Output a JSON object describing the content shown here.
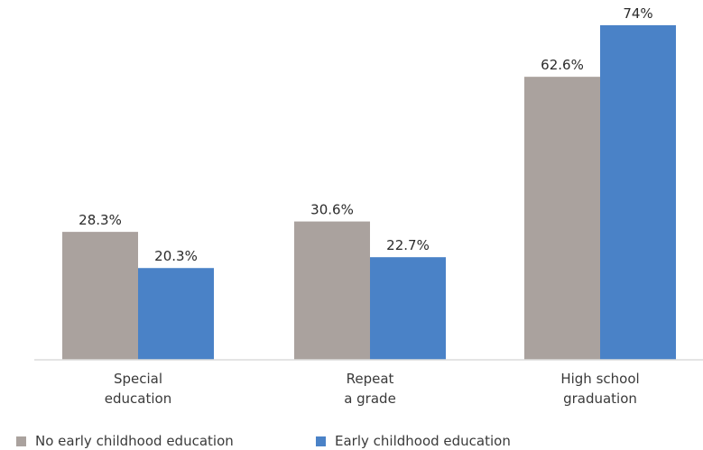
{
  "chart_data": {
    "type": "bar",
    "categories": [
      [
        "Special",
        "education"
      ],
      [
        "Repeat",
        "a grade"
      ],
      [
        "High school",
        "graduation"
      ]
    ],
    "series": [
      {
        "name": "No early childhood education",
        "values": [
          28.3,
          30.6,
          62.6
        ],
        "labels": [
          "28.3%",
          "30.6%",
          "62.6%"
        ],
        "color": "#aaa29e"
      },
      {
        "name": "Early childhood education",
        "values": [
          20.3,
          22.7,
          74
        ],
        "labels": [
          "20.3%",
          "22.7%",
          "74%"
        ],
        "color": "#4a82c7"
      }
    ],
    "title": "",
    "xlabel": "",
    "ylabel": "",
    "ylim": [
      0,
      76
    ],
    "grid": false,
    "legend_position": "bottom-left"
  }
}
